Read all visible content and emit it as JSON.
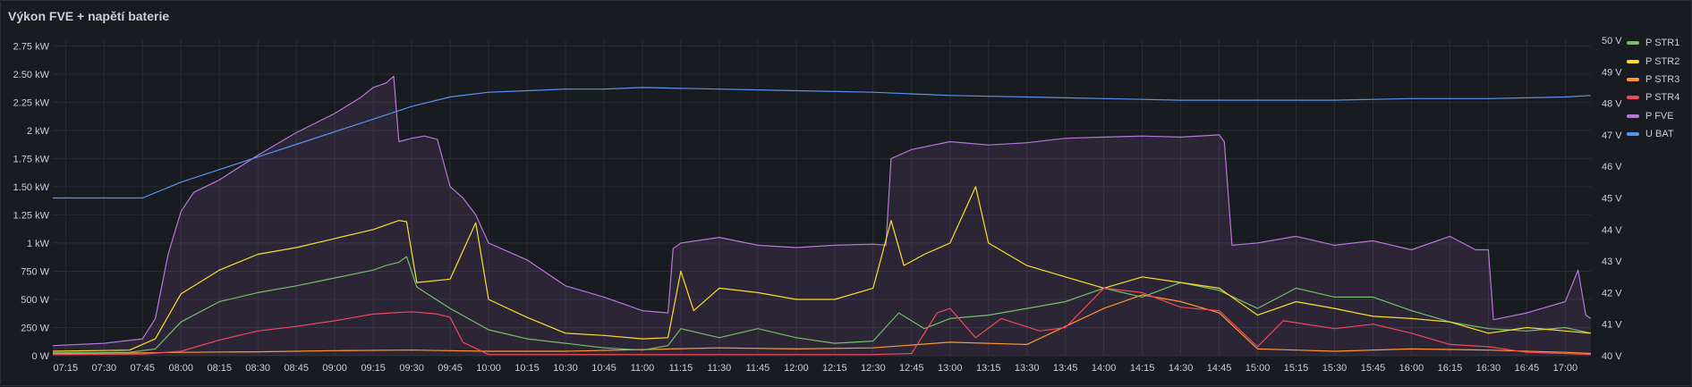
{
  "panel": {
    "title": "Výkon FVE + napětí baterie"
  },
  "chart_data": {
    "type": "line",
    "title": "Výkon FVE + napětí baterie",
    "x_ticks": [
      "07:15",
      "07:30",
      "07:45",
      "08:00",
      "08:15",
      "08:30",
      "08:45",
      "09:00",
      "09:15",
      "09:30",
      "09:45",
      "10:00",
      "10:15",
      "10:30",
      "10:45",
      "11:00",
      "11:15",
      "11:30",
      "11:45",
      "12:00",
      "12:15",
      "12:30",
      "12:45",
      "13:00",
      "13:15",
      "13:30",
      "13:45",
      "14:00",
      "14:15",
      "14:30",
      "14:45",
      "15:00",
      "15:15",
      "15:30",
      "15:45",
      "16:00",
      "16:15",
      "16:30",
      "16:45",
      "17:00"
    ],
    "y_left_ticks": [
      "0 W",
      "250 W",
      "500 W",
      "750 W",
      "1 kW",
      "1.25 kW",
      "1.50 kW",
      "1.75 kW",
      "2 kW",
      "2.25 kW",
      "2.50 kW",
      "2.75 kW"
    ],
    "y_left_values": [
      0,
      250,
      500,
      750,
      1000,
      1250,
      1500,
      1750,
      2000,
      2250,
      2500,
      2750
    ],
    "y_right_ticks": [
      "40 V",
      "41 V",
      "42 V",
      "43 V",
      "44 V",
      "45 V",
      "46 V",
      "47 V",
      "48 V",
      "49 V",
      "50 V"
    ],
    "y_right_values": [
      40,
      41,
      42,
      43,
      44,
      45,
      46,
      47,
      48,
      49,
      50
    ],
    "ylim_left": [
      0,
      2800
    ],
    "ylim_right": [
      40,
      50
    ],
    "x_start": "07:10",
    "x_end": "17:10",
    "grid": true,
    "legend_position": "right",
    "series": [
      {
        "name": "P STR1",
        "color": "#73bf69",
        "axis": "left",
        "points": [
          [
            "07:10",
            25
          ],
          [
            "07:40",
            30
          ],
          [
            "07:50",
            60
          ],
          [
            "08:00",
            300
          ],
          [
            "08:15",
            480
          ],
          [
            "08:30",
            560
          ],
          [
            "08:45",
            620
          ],
          [
            "09:00",
            690
          ],
          [
            "09:15",
            760
          ],
          [
            "09:20",
            800
          ],
          [
            "09:25",
            830
          ],
          [
            "09:28",
            880
          ],
          [
            "09:32",
            610
          ],
          [
            "09:45",
            420
          ],
          [
            "10:00",
            230
          ],
          [
            "10:15",
            150
          ],
          [
            "10:30",
            110
          ],
          [
            "10:45",
            70
          ],
          [
            "11:00",
            50
          ],
          [
            "11:10",
            90
          ],
          [
            "11:15",
            240
          ],
          [
            "11:30",
            160
          ],
          [
            "11:45",
            240
          ],
          [
            "12:00",
            160
          ],
          [
            "12:15",
            110
          ],
          [
            "12:30",
            130
          ],
          [
            "12:40",
            380
          ],
          [
            "12:50",
            240
          ],
          [
            "13:00",
            330
          ],
          [
            "13:15",
            360
          ],
          [
            "13:30",
            420
          ],
          [
            "13:45",
            480
          ],
          [
            "14:00",
            600
          ],
          [
            "14:15",
            520
          ],
          [
            "14:30",
            650
          ],
          [
            "14:45",
            580
          ],
          [
            "15:00",
            420
          ],
          [
            "15:15",
            600
          ],
          [
            "15:30",
            520
          ],
          [
            "15:45",
            520
          ],
          [
            "16:00",
            400
          ],
          [
            "16:15",
            300
          ],
          [
            "16:30",
            240
          ],
          [
            "16:45",
            220
          ],
          [
            "17:00",
            250
          ],
          [
            "17:10",
            200
          ]
        ]
      },
      {
        "name": "P STR2",
        "color": "#fade2a",
        "axis": "left",
        "points": [
          [
            "07:10",
            40
          ],
          [
            "07:40",
            50
          ],
          [
            "07:50",
            150
          ],
          [
            "08:00",
            550
          ],
          [
            "08:15",
            760
          ],
          [
            "08:30",
            900
          ],
          [
            "08:45",
            960
          ],
          [
            "09:00",
            1040
          ],
          [
            "09:15",
            1120
          ],
          [
            "09:25",
            1200
          ],
          [
            "09:28",
            1190
          ],
          [
            "09:32",
            650
          ],
          [
            "09:45",
            680
          ],
          [
            "09:55",
            1180
          ],
          [
            "10:00",
            500
          ],
          [
            "10:15",
            340
          ],
          [
            "10:30",
            200
          ],
          [
            "10:45",
            180
          ],
          [
            "11:00",
            150
          ],
          [
            "11:10",
            160
          ],
          [
            "11:15",
            750
          ],
          [
            "11:20",
            400
          ],
          [
            "11:30",
            600
          ],
          [
            "11:45",
            560
          ],
          [
            "12:00",
            500
          ],
          [
            "12:15",
            500
          ],
          [
            "12:30",
            600
          ],
          [
            "12:37",
            1200
          ],
          [
            "12:42",
            800
          ],
          [
            "12:50",
            900
          ],
          [
            "13:00",
            1000
          ],
          [
            "13:10",
            1500
          ],
          [
            "13:15",
            1000
          ],
          [
            "13:30",
            800
          ],
          [
            "13:45",
            700
          ],
          [
            "14:00",
            600
          ],
          [
            "14:15",
            700
          ],
          [
            "14:30",
            650
          ],
          [
            "14:45",
            600
          ],
          [
            "15:00",
            360
          ],
          [
            "15:15",
            480
          ],
          [
            "15:30",
            420
          ],
          [
            "15:45",
            350
          ],
          [
            "16:00",
            330
          ],
          [
            "16:15",
            300
          ],
          [
            "16:30",
            200
          ],
          [
            "16:45",
            250
          ],
          [
            "17:00",
            220
          ],
          [
            "17:10",
            200
          ]
        ]
      },
      {
        "name": "P STR3",
        "color": "#ff9830",
        "axis": "left",
        "points": [
          [
            "07:10",
            20
          ],
          [
            "07:45",
            25
          ],
          [
            "08:00",
            30
          ],
          [
            "08:30",
            35
          ],
          [
            "09:00",
            45
          ],
          [
            "09:30",
            50
          ],
          [
            "10:00",
            40
          ],
          [
            "10:30",
            40
          ],
          [
            "11:00",
            55
          ],
          [
            "11:30",
            70
          ],
          [
            "12:00",
            60
          ],
          [
            "12:30",
            70
          ],
          [
            "13:00",
            120
          ],
          [
            "13:30",
            100
          ],
          [
            "14:00",
            420
          ],
          [
            "14:15",
            540
          ],
          [
            "14:30",
            480
          ],
          [
            "14:45",
            380
          ],
          [
            "15:00",
            60
          ],
          [
            "15:15",
            50
          ],
          [
            "15:30",
            40
          ],
          [
            "16:00",
            60
          ],
          [
            "16:30",
            50
          ],
          [
            "17:00",
            30
          ],
          [
            "17:10",
            20
          ]
        ]
      },
      {
        "name": "P STR4",
        "color": "#f2495c",
        "axis": "left",
        "points": [
          [
            "07:10",
            10
          ],
          [
            "07:45",
            15
          ],
          [
            "08:00",
            40
          ],
          [
            "08:15",
            140
          ],
          [
            "08:30",
            220
          ],
          [
            "08:45",
            260
          ],
          [
            "09:00",
            310
          ],
          [
            "09:15",
            370
          ],
          [
            "09:30",
            390
          ],
          [
            "09:40",
            370
          ],
          [
            "09:45",
            340
          ],
          [
            "09:50",
            120
          ],
          [
            "10:00",
            10
          ],
          [
            "11:00",
            10
          ],
          [
            "12:30",
            10
          ],
          [
            "12:45",
            20
          ],
          [
            "12:55",
            380
          ],
          [
            "13:00",
            420
          ],
          [
            "13:10",
            160
          ],
          [
            "13:20",
            330
          ],
          [
            "13:35",
            220
          ],
          [
            "13:45",
            250
          ],
          [
            "14:00",
            600
          ],
          [
            "14:15",
            560
          ],
          [
            "14:30",
            430
          ],
          [
            "14:45",
            400
          ],
          [
            "15:00",
            80
          ],
          [
            "15:10",
            310
          ],
          [
            "15:30",
            240
          ],
          [
            "15:45",
            280
          ],
          [
            "16:00",
            200
          ],
          [
            "16:15",
            100
          ],
          [
            "16:30",
            80
          ],
          [
            "16:45",
            30
          ],
          [
            "17:00",
            20
          ],
          [
            "17:10",
            10
          ]
        ]
      },
      {
        "name": "P FVE",
        "color": "#b877d9",
        "axis": "left",
        "fill": true,
        "points": [
          [
            "07:10",
            90
          ],
          [
            "07:30",
            110
          ],
          [
            "07:45",
            150
          ],
          [
            "07:50",
            330
          ],
          [
            "07:55",
            900
          ],
          [
            "08:00",
            1280
          ],
          [
            "08:05",
            1450
          ],
          [
            "08:15",
            1560
          ],
          [
            "08:30",
            1780
          ],
          [
            "08:45",
            1980
          ],
          [
            "09:00",
            2150
          ],
          [
            "09:10",
            2290
          ],
          [
            "09:15",
            2380
          ],
          [
            "09:20",
            2420
          ],
          [
            "09:23",
            2480
          ],
          [
            "09:25",
            1900
          ],
          [
            "09:30",
            1930
          ],
          [
            "09:35",
            1950
          ],
          [
            "09:40",
            1920
          ],
          [
            "09:45",
            1500
          ],
          [
            "09:50",
            1400
          ],
          [
            "09:55",
            1250
          ],
          [
            "10:00",
            1000
          ],
          [
            "10:15",
            850
          ],
          [
            "10:30",
            620
          ],
          [
            "10:45",
            520
          ],
          [
            "11:00",
            400
          ],
          [
            "11:10",
            380
          ],
          [
            "11:12",
            950
          ],
          [
            "11:15",
            1000
          ],
          [
            "11:30",
            1050
          ],
          [
            "11:45",
            980
          ],
          [
            "12:00",
            960
          ],
          [
            "12:15",
            980
          ],
          [
            "12:30",
            990
          ],
          [
            "12:35",
            980
          ],
          [
            "12:37",
            1750
          ],
          [
            "12:45",
            1830
          ],
          [
            "13:00",
            1900
          ],
          [
            "13:15",
            1870
          ],
          [
            "13:30",
            1890
          ],
          [
            "13:45",
            1930
          ],
          [
            "14:00",
            1940
          ],
          [
            "14:15",
            1950
          ],
          [
            "14:30",
            1940
          ],
          [
            "14:45",
            1960
          ],
          [
            "14:47",
            1900
          ],
          [
            "14:50",
            980
          ],
          [
            "15:00",
            1000
          ],
          [
            "15:15",
            1060
          ],
          [
            "15:30",
            980
          ],
          [
            "15:45",
            1020
          ],
          [
            "16:00",
            940
          ],
          [
            "16:15",
            1060
          ],
          [
            "16:25",
            940
          ],
          [
            "16:30",
            940
          ],
          [
            "16:32",
            320
          ],
          [
            "16:45",
            380
          ],
          [
            "17:00",
            480
          ],
          [
            "17:05",
            760
          ],
          [
            "17:08",
            360
          ],
          [
            "17:10",
            330
          ]
        ]
      },
      {
        "name": "U BAT",
        "color": "#5794f2",
        "axis": "right",
        "points": [
          [
            "07:10",
            45.0
          ],
          [
            "07:30",
            45.0
          ],
          [
            "07:45",
            45.0
          ],
          [
            "08:00",
            45.5
          ],
          [
            "08:15",
            45.9
          ],
          [
            "08:30",
            46.3
          ],
          [
            "08:45",
            46.7
          ],
          [
            "09:00",
            47.1
          ],
          [
            "09:15",
            47.5
          ],
          [
            "09:30",
            47.9
          ],
          [
            "09:45",
            48.2
          ],
          [
            "10:00",
            48.35
          ],
          [
            "10:15",
            48.4
          ],
          [
            "10:30",
            48.45
          ],
          [
            "10:45",
            48.45
          ],
          [
            "11:00",
            48.5
          ],
          [
            "11:30",
            48.45
          ],
          [
            "12:00",
            48.4
          ],
          [
            "12:30",
            48.35
          ],
          [
            "12:45",
            48.3
          ],
          [
            "13:00",
            48.25
          ],
          [
            "13:30",
            48.2
          ],
          [
            "14:00",
            48.15
          ],
          [
            "14:30",
            48.1
          ],
          [
            "15:00",
            48.1
          ],
          [
            "15:30",
            48.1
          ],
          [
            "16:00",
            48.15
          ],
          [
            "16:30",
            48.15
          ],
          [
            "17:00",
            48.2
          ],
          [
            "17:10",
            48.25
          ]
        ]
      }
    ]
  }
}
